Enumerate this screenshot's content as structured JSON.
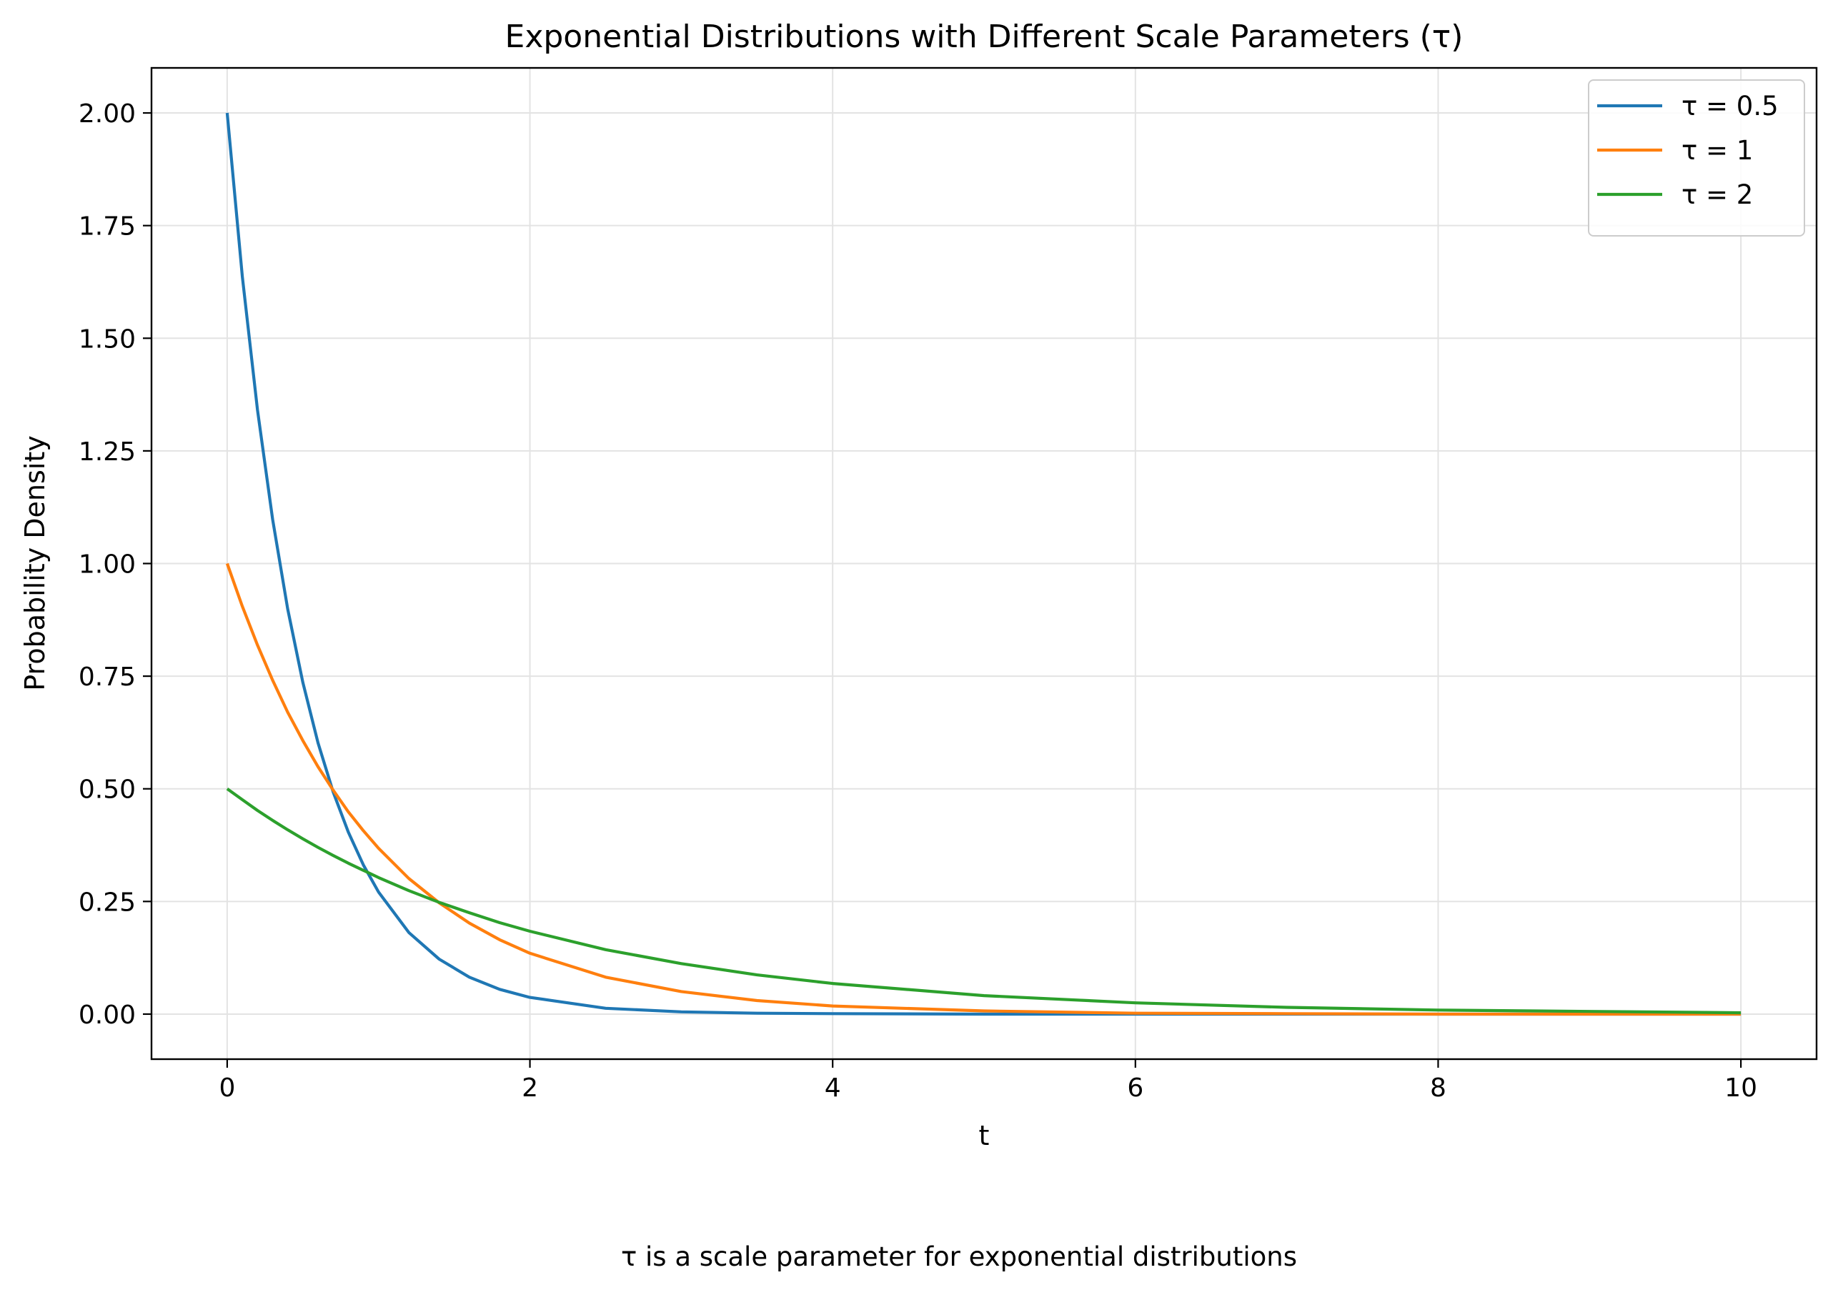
{
  "chart_data": {
    "type": "line",
    "title": "Exponential Distributions with Different Scale Parameters (τ)",
    "xlabel": "t",
    "ylabel": "Probability Density",
    "caption": "τ is a scale parameter for exponential distributions",
    "xlim": [
      -0.5,
      10.5
    ],
    "ylim": [
      -0.1,
      2.1
    ],
    "x_ticks": [
      0,
      2,
      4,
      6,
      8,
      10
    ],
    "x_tick_labels": [
      "0",
      "2",
      "4",
      "6",
      "8",
      "10"
    ],
    "y_ticks": [
      0.0,
      0.25,
      0.5,
      0.75,
      1.0,
      1.25,
      1.5,
      1.75,
      2.0
    ],
    "y_tick_labels": [
      "0.00",
      "0.25",
      "0.50",
      "0.75",
      "1.00",
      "1.25",
      "1.50",
      "1.75",
      "2.00"
    ],
    "grid": true,
    "legend_position": "top-right",
    "x": [
      0,
      0.1,
      0.2,
      0.3,
      0.4,
      0.5,
      0.6,
      0.7,
      0.8,
      0.9,
      1.0,
      1.2,
      1.4,
      1.6,
      1.8,
      2.0,
      2.5,
      3.0,
      3.5,
      4.0,
      5.0,
      6.0,
      7.0,
      8.0,
      9.0,
      10.0
    ],
    "series": [
      {
        "name": "τ = 0.5",
        "color": "#1f77b4",
        "values": [
          2.0,
          1.637,
          1.341,
          1.098,
          0.899,
          0.736,
          0.602,
          0.493,
          0.404,
          0.331,
          0.271,
          0.181,
          0.122,
          0.082,
          0.055,
          0.037,
          0.013,
          0.005,
          0.002,
          0.001,
          0.0,
          0.0,
          0.0,
          0.0,
          0.0,
          0.0
        ]
      },
      {
        "name": "τ = 1",
        "color": "#ff7f0e",
        "values": [
          1.0,
          0.905,
          0.819,
          0.741,
          0.67,
          0.607,
          0.549,
          0.497,
          0.449,
          0.407,
          0.368,
          0.301,
          0.247,
          0.202,
          0.165,
          0.135,
          0.082,
          0.05,
          0.03,
          0.018,
          0.007,
          0.002,
          0.001,
          0.0,
          0.0,
          0.0
        ]
      },
      {
        "name": "τ = 2",
        "color": "#2ca02c",
        "values": [
          0.5,
          0.476,
          0.452,
          0.43,
          0.409,
          0.389,
          0.37,
          0.352,
          0.335,
          0.319,
          0.303,
          0.274,
          0.248,
          0.225,
          0.203,
          0.184,
          0.143,
          0.112,
          0.087,
          0.068,
          0.041,
          0.025,
          0.015,
          0.009,
          0.006,
          0.003
        ]
      }
    ]
  }
}
